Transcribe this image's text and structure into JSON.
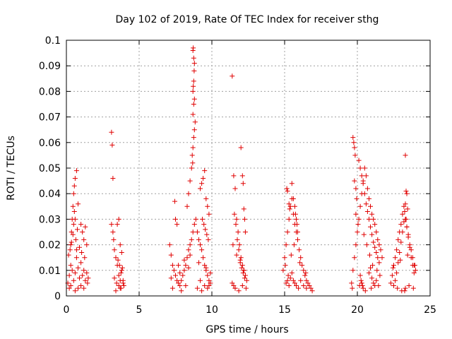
{
  "chart_data": {
    "type": "scatter",
    "title": "Day 102 of 2019, Rate Of TEC Index for receiver sthg",
    "xlabel": "GPS time / hours",
    "ylabel": "ROTI / TECUs",
    "xlim": [
      0,
      25
    ],
    "ylim": [
      0,
      0.1
    ],
    "xticks": [
      0,
      5,
      10,
      15,
      20,
      25
    ],
    "xtick_labels": [
      "0",
      "5",
      "10",
      "15",
      "20",
      "25"
    ],
    "yticks": [
      0,
      0.01,
      0.02,
      0.03,
      0.04,
      0.05,
      0.06,
      0.07,
      0.08,
      0.09,
      0.1
    ],
    "ytick_labels": [
      "0",
      "0.01",
      "0.02",
      "0.03",
      "0.04",
      "0.05",
      "0.06",
      "0.07",
      "0.08",
      "0.09",
      "0.1"
    ],
    "grid": true,
    "marker": "+",
    "marker_color": "#e00000",
    "series": [
      {
        "name": "ROTI",
        "x": [
          0.1,
          0.2,
          0.3,
          0.4,
          0.5,
          0.6,
          0.7,
          0.8,
          0.9,
          1.0,
          1.1,
          1.2,
          1.3,
          1.4,
          1.5,
          0.3,
          0.35,
          0.4,
          0.45,
          0.5,
          0.55,
          0.6,
          0.65,
          0.7,
          0.75,
          0.5,
          0.55,
          0.6,
          0.7,
          0.8,
          1.0,
          1.1,
          1.2,
          1.3,
          1.4,
          0.15,
          0.25,
          0.35,
          0.45,
          0.9,
          1.05,
          1.25,
          0.2,
          0.3,
          0.6,
          0.8,
          1.0,
          1.2,
          1.45,
          3.1,
          3.15,
          3.2,
          3.1,
          3.2,
          3.25,
          3.3,
          3.4,
          3.5,
          3.6,
          3.7,
          3.8,
          3.9,
          3.95,
          3.5,
          3.6,
          3.7,
          3.8,
          3.55,
          3.65,
          3.75,
          3.85,
          3.3,
          3.45,
          3.6,
          3.75,
          3.9,
          3.4,
          3.7,
          7.1,
          7.2,
          7.3,
          7.4,
          7.5,
          7.6,
          7.7,
          7.8,
          7.9,
          8.0,
          8.1,
          8.2,
          8.3,
          8.4,
          8.5,
          8.6,
          8.7,
          8.8,
          8.9,
          9.0,
          9.1,
          9.2,
          9.3,
          9.4,
          9.5,
          9.6,
          9.7,
          9.8,
          9.9,
          7.45,
          7.5,
          7.6,
          8.3,
          8.4,
          8.5,
          8.6,
          8.65,
          8.7,
          8.75,
          8.8,
          8.85,
          8.7,
          8.75,
          8.8,
          8.7,
          8.72,
          8.75,
          8.78,
          8.8,
          8.75,
          8.7,
          8.72,
          8.68,
          9.2,
          9.3,
          9.4,
          9.5,
          9.6,
          9.7,
          9.8,
          9.35,
          9.45,
          9.55,
          9.65,
          9.75,
          7.3,
          7.9,
          8.2,
          9.0,
          9.3,
          9.5,
          9.7,
          7.7,
          8.1,
          8.5,
          9.1,
          9.6,
          9.9,
          7.2,
          7.8,
          8.4,
          9.2,
          9.8,
          11.4,
          11.5,
          11.6,
          11.7,
          11.8,
          11.9,
          12.0,
          12.1,
          12.2,
          12.3,
          12.4,
          11.55,
          11.65,
          11.75,
          11.85,
          11.95,
          12.05,
          12.15,
          12.25,
          11.4,
          11.5,
          11.6,
          12.0,
          12.1,
          12.15,
          12.2,
          12.25,
          12.3,
          11.45,
          11.7,
          11.95,
          12.2,
          11.6,
          11.85,
          12.1,
          12.35,
          14.9,
          15.0,
          15.1,
          15.2,
          15.3,
          15.4,
          15.5,
          15.6,
          15.7,
          15.8,
          15.9,
          16.0,
          16.1,
          16.2,
          16.3,
          16.4,
          16.5,
          16.6,
          16.7,
          16.8,
          16.9,
          15.15,
          15.2,
          15.3,
          15.35,
          15.5,
          15.6,
          15.7,
          15.75,
          15.8,
          15.85,
          15.9,
          15.1,
          15.2,
          15.25,
          15.3,
          15.4,
          15.5,
          15.6,
          15.7,
          15.8,
          15.95,
          16.1,
          16.3,
          16.5,
          15.05,
          15.45,
          15.65,
          16.05,
          16.45,
          19.6,
          19.7,
          19.8,
          19.9,
          20.0,
          20.1,
          20.2,
          20.3,
          20.4,
          20.5,
          20.6,
          20.7,
          20.8,
          20.9,
          21.0,
          21.1,
          21.2,
          21.3,
          21.4,
          21.5,
          21.6,
          21.7,
          19.7,
          19.75,
          19.8,
          19.85,
          19.8,
          19.9,
          19.95,
          20.1,
          20.2,
          20.3,
          20.4,
          20.5,
          20.6,
          20.7,
          20.8,
          20.9,
          21.0,
          21.1,
          21.2,
          21.3,
          21.4,
          21.5,
          20.2,
          20.25,
          20.3,
          20.35,
          20.4,
          20.8,
          20.9,
          21.0,
          21.1,
          21.2,
          21.3,
          19.9,
          20.05,
          20.45,
          20.65,
          20.85,
          21.05,
          21.35,
          21.55,
          19.65,
          20.15,
          20.55,
          20.95,
          21.45,
          22.3,
          22.4,
          22.5,
          22.6,
          22.7,
          22.8,
          22.9,
          23.0,
          23.1,
          23.2,
          23.3,
          23.4,
          23.5,
          23.6,
          23.7,
          23.8,
          23.9,
          24.0,
          22.6,
          22.7,
          22.8,
          22.9,
          23.0,
          23.1,
          23.2,
          23.25,
          23.3,
          23.35,
          23.4,
          23.5,
          23.6,
          23.7,
          23.8,
          23.9,
          23.3,
          23.35,
          23.4,
          23.45,
          23.3,
          23.25,
          22.5,
          22.75,
          23.05,
          23.55,
          23.85,
          22.45,
          22.95,
          23.45,
          23.95
        ],
        "y": [
          0.005,
          0.008,
          0.012,
          0.01,
          0.006,
          0.009,
          0.015,
          0.011,
          0.007,
          0.013,
          0.008,
          0.01,
          0.006,
          0.009,
          0.007,
          0.02,
          0.025,
          0.03,
          0.035,
          0.028,
          0.033,
          0.03,
          0.022,
          0.018,
          0.026,
          0.04,
          0.043,
          0.046,
          0.049,
          0.036,
          0.028,
          0.025,
          0.022,
          0.027,
          0.02,
          0.016,
          0.018,
          0.021,
          0.024,
          0.019,
          0.017,
          0.015,
          0.003,
          0.004,
          0.002,
          0.003,
          0.004,
          0.003,
          0.005,
          0.064,
          0.059,
          0.046,
          0.028,
          0.025,
          0.022,
          0.018,
          0.015,
          0.012,
          0.008,
          0.006,
          0.01,
          0.005,
          0.004,
          0.028,
          0.03,
          0.02,
          0.017,
          0.014,
          0.012,
          0.009,
          0.011,
          0.007,
          0.005,
          0.004,
          0.003,
          0.006,
          0.002,
          0.003,
          0.02,
          0.016,
          0.012,
          0.01,
          0.008,
          0.006,
          0.005,
          0.004,
          0.006,
          0.008,
          0.01,
          0.012,
          0.015,
          0.018,
          0.02,
          0.022,
          0.025,
          0.028,
          0.03,
          0.025,
          0.022,
          0.02,
          0.018,
          0.015,
          0.012,
          0.01,
          0.008,
          0.006,
          0.005,
          0.037,
          0.03,
          0.028,
          0.035,
          0.04,
          0.045,
          0.05,
          0.055,
          0.058,
          0.062,
          0.065,
          0.068,
          0.071,
          0.075,
          0.077,
          0.08,
          0.082,
          0.084,
          0.088,
          0.091,
          0.093,
          0.096,
          0.097,
          0.052,
          0.042,
          0.044,
          0.046,
          0.049,
          0.038,
          0.035,
          0.032,
          0.03,
          0.028,
          0.026,
          0.024,
          0.022,
          0.003,
          0.002,
          0.004,
          0.003,
          0.002,
          0.004,
          0.003,
          0.012,
          0.014,
          0.016,
          0.013,
          0.011,
          0.009,
          0.007,
          0.009,
          0.011,
          0.006,
          0.004,
          0.086,
          0.047,
          0.042,
          0.03,
          0.025,
          0.02,
          0.015,
          0.012,
          0.01,
          0.008,
          0.006,
          0.032,
          0.028,
          0.022,
          0.018,
          0.014,
          0.011,
          0.009,
          0.007,
          0.005,
          0.004,
          0.003,
          0.058,
          0.047,
          0.044,
          0.034,
          0.03,
          0.025,
          0.02,
          0.016,
          0.013,
          0.01,
          0.003,
          0.002,
          0.004,
          0.003,
          0.01,
          0.015,
          0.02,
          0.025,
          0.03,
          0.035,
          0.038,
          0.032,
          0.028,
          0.025,
          0.022,
          0.018,
          0.015,
          0.012,
          0.01,
          0.008,
          0.006,
          0.005,
          0.004,
          0.003,
          0.002,
          0.042,
          0.041,
          0.036,
          0.034,
          0.044,
          0.038,
          0.035,
          0.032,
          0.03,
          0.028,
          0.025,
          0.005,
          0.006,
          0.008,
          0.004,
          0.007,
          0.009,
          0.006,
          0.005,
          0.004,
          0.003,
          0.006,
          0.004,
          0.003,
          0.012,
          0.016,
          0.02,
          0.013,
          0.009,
          0.005,
          0.01,
          0.015,
          0.02,
          0.025,
          0.03,
          0.035,
          0.04,
          0.045,
          0.05,
          0.047,
          0.042,
          0.038,
          0.035,
          0.032,
          0.03,
          0.028,
          0.025,
          0.022,
          0.02,
          0.018,
          0.015,
          0.062,
          0.06,
          0.058,
          0.055,
          0.045,
          0.042,
          0.038,
          0.053,
          0.05,
          0.047,
          0.044,
          0.04,
          0.036,
          0.033,
          0.03,
          0.027,
          0.024,
          0.021,
          0.019,
          0.017,
          0.015,
          0.013,
          0.008,
          0.006,
          0.005,
          0.004,
          0.003,
          0.009,
          0.011,
          0.007,
          0.005,
          0.004,
          0.006,
          0.032,
          0.028,
          0.024,
          0.02,
          0.016,
          0.012,
          0.01,
          0.008,
          0.003,
          0.004,
          0.002,
          0.003,
          0.004,
          0.005,
          0.008,
          0.012,
          0.015,
          0.018,
          0.022,
          0.025,
          0.028,
          0.032,
          0.035,
          0.03,
          0.027,
          0.024,
          0.02,
          0.018,
          0.015,
          0.012,
          0.01,
          0.006,
          0.009,
          0.013,
          0.017,
          0.021,
          0.025,
          0.029,
          0.033,
          0.036,
          0.03,
          0.027,
          0.023,
          0.019,
          0.015,
          0.012,
          0.009,
          0.055,
          0.041,
          0.04,
          0.034,
          0.003,
          0.002,
          0.004,
          0.003,
          0.002,
          0.004,
          0.003,
          0.011,
          0.014,
          0.016,
          0.012
        ]
      }
    ]
  }
}
